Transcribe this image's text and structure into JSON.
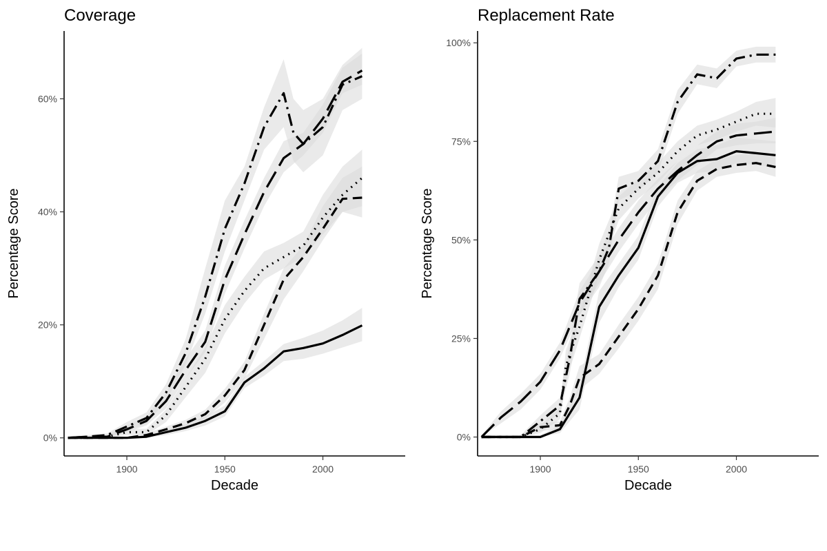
{
  "chart_data": [
    {
      "type": "line",
      "title": "Coverage",
      "xlabel": "Decade",
      "ylabel": "Percentage Score",
      "xlim": [
        1868,
        2042
      ],
      "ylim": [
        -3.2,
        72
      ],
      "x_ticks": [
        1900,
        1950,
        2000
      ],
      "x_tick_labels": [
        "1900",
        "1950",
        "2000"
      ],
      "y_ticks": [
        0,
        20,
        40,
        60
      ],
      "y_tick_labels": [
        "0%",
        "20%",
        "40%",
        "60%"
      ],
      "grid": false,
      "legend": "none",
      "band_color": "#d9d9d9",
      "line_color": "#000000",
      "series": [
        {
          "dash": "solid",
          "x": [
            1870,
            1880,
            1890,
            1900,
            1910,
            1920,
            1930,
            1940,
            1950,
            1960,
            1970,
            1980,
            1990,
            2000,
            2010,
            2020
          ],
          "values": [
            0,
            0,
            0,
            0,
            0.2,
            1,
            1.8,
            3,
            4.7,
            9.8,
            12.3,
            15.3,
            15.9,
            16.7,
            18.2,
            19.9
          ],
          "lower": [
            0,
            0,
            0,
            0,
            0,
            0.5,
            1.2,
            2.2,
            3.8,
            8.8,
            11,
            13.6,
            14,
            14.9,
            16,
            17.1
          ],
          "upper": [
            0.2,
            0.2,
            0.2,
            0.2,
            0.5,
            1.5,
            2.4,
            3.8,
            5.7,
            10.8,
            13.6,
            16.6,
            17.7,
            19,
            20.8,
            23
          ]
        },
        {
          "dash": "dashed-short",
          "x": [
            1870,
            1880,
            1890,
            1900,
            1910,
            1920,
            1930,
            1940,
            1950,
            1960,
            1970,
            1980,
            1990,
            2000,
            2010,
            2020
          ],
          "values": [
            0,
            0,
            0,
            0,
            0.5,
            1.5,
            2.6,
            4.2,
            7.5,
            12,
            20,
            28,
            32,
            37,
            42.3,
            42.5
          ],
          "lower": [
            0,
            0,
            0,
            0,
            0.2,
            1,
            2,
            3.4,
            6.3,
            10.5,
            17.5,
            24.5,
            29.5,
            35,
            40,
            39
          ],
          "upper": [
            0.2,
            0.2,
            0.2,
            0.2,
            0.8,
            2,
            3.2,
            5,
            8.7,
            13.5,
            22,
            30,
            34,
            41,
            46,
            48
          ]
        },
        {
          "dash": "dotted",
          "x": [
            1870,
            1880,
            1890,
            1900,
            1910,
            1920,
            1930,
            1940,
            1950,
            1960,
            1970,
            1980,
            1990,
            2000,
            2010,
            2020
          ],
          "values": [
            0,
            0,
            0.2,
            1,
            1,
            4,
            9,
            14,
            21,
            26,
            30,
            32,
            34,
            39,
            43,
            46
          ],
          "lower": [
            0,
            0,
            0,
            0.5,
            0.5,
            2.8,
            7.2,
            11.5,
            18.5,
            23.8,
            28,
            30,
            32,
            36,
            40,
            41
          ],
          "upper": [
            0.2,
            0.2,
            0.5,
            1.6,
            1.6,
            5,
            10.5,
            16,
            23.5,
            28.5,
            33,
            34.5,
            36.5,
            43,
            48,
            51
          ]
        },
        {
          "dash": "dashed-long",
          "x": [
            1870,
            1880,
            1890,
            1900,
            1910,
            1920,
            1930,
            1940,
            1950,
            1960,
            1970,
            1980,
            1990,
            2000,
            2010,
            2020
          ],
          "values": [
            0,
            0.2,
            0.2,
            1.5,
            3,
            6.5,
            12,
            17,
            28,
            36,
            43.5,
            49.5,
            52,
            56.5,
            63,
            65
          ],
          "lower": [
            0,
            0,
            0,
            1,
            2.2,
            5.2,
            10.5,
            15.2,
            25.5,
            33.5,
            41,
            47,
            50,
            54,
            61,
            62.5
          ],
          "upper": [
            0.2,
            0.4,
            0.5,
            2.2,
            3.8,
            8,
            14,
            19,
            30.5,
            38.5,
            46,
            52.5,
            54,
            59,
            65.5,
            68
          ]
        },
        {
          "dash": "dash-dot",
          "x": [
            1870,
            1880,
            1890,
            1900,
            1910,
            1920,
            1930,
            1940,
            1950,
            1960,
            1970,
            1980,
            1985,
            1990,
            2000,
            2010,
            2020
          ],
          "values": [
            0,
            0.2,
            0.5,
            2,
            3.5,
            8,
            15,
            25,
            37,
            45,
            55,
            61,
            54,
            52,
            55,
            62.5,
            64
          ],
          "lower": [
            0,
            0,
            0.2,
            1.2,
            2.5,
            6.5,
            13,
            22,
            33,
            42,
            51,
            55,
            49,
            47,
            50,
            58,
            60
          ],
          "upper": [
            0.3,
            0.5,
            0.8,
            2.8,
            4.5,
            9.5,
            17.5,
            30,
            42,
            48,
            58.5,
            67,
            60,
            58,
            60,
            66,
            69
          ]
        }
      ]
    },
    {
      "type": "line",
      "title": "Replacement Rate",
      "xlabel": "Decade",
      "ylabel": "Percentage Score",
      "xlim": [
        1868,
        2042
      ],
      "ylim": [
        -4.8,
        103
      ],
      "x_ticks": [
        1900,
        1950,
        2000
      ],
      "x_tick_labels": [
        "1900",
        "1950",
        "2000"
      ],
      "y_ticks": [
        0,
        25,
        50,
        75,
        100
      ],
      "y_tick_labels": [
        "0%",
        "25%",
        "50%",
        "75%",
        "100%"
      ],
      "grid": false,
      "legend": "none",
      "band_color": "#d9d9d9",
      "line_color": "#000000",
      "series": [
        {
          "dash": "solid",
          "x": [
            1870,
            1880,
            1890,
            1900,
            1910,
            1920,
            1930,
            1940,
            1950,
            1960,
            1970,
            1980,
            1990,
            2000,
            2010,
            2020
          ],
          "values": [
            0,
            0,
            0,
            0,
            2,
            10,
            33,
            41,
            48,
            61,
            67,
            70,
            70.5,
            72.5,
            72,
            71.5
          ],
          "lower": [
            0,
            0,
            0,
            0,
            1,
            7,
            29,
            38,
            45,
            58.5,
            64.5,
            67,
            67.5,
            69.5,
            69,
            68.5
          ],
          "upper": [
            0.5,
            0.5,
            0.5,
            0.5,
            3,
            13,
            37,
            44,
            51,
            63.5,
            69.5,
            73,
            74,
            76,
            75.5,
            75
          ]
        },
        {
          "dash": "dashed-short",
          "x": [
            1870,
            1880,
            1890,
            1900,
            1910,
            1915,
            1920,
            1930,
            1940,
            1950,
            1960,
            1970,
            1980,
            1990,
            2000,
            2010,
            2020
          ],
          "values": [
            0,
            0,
            0,
            2.5,
            3,
            8,
            15,
            18.5,
            25.5,
            32.5,
            41,
            57,
            65,
            68,
            69,
            69.5,
            68.5
          ],
          "lower": [
            0,
            0,
            0,
            1.5,
            2,
            6,
            12,
            16,
            22.5,
            29.5,
            37.5,
            54,
            62.5,
            66,
            67,
            67.5,
            66
          ],
          "upper": [
            0.5,
            0.5,
            0.5,
            3.5,
            4,
            10,
            18,
            21,
            28.5,
            35.5,
            44,
            60,
            67.5,
            70.5,
            71.5,
            72,
            71
          ]
        },
        {
          "dash": "dashed-long",
          "x": [
            1870,
            1880,
            1890,
            1900,
            1910,
            1920,
            1930,
            1940,
            1950,
            1960,
            1970,
            1980,
            1990,
            2000,
            2010,
            2020
          ],
          "values": [
            0,
            5,
            9,
            14,
            22,
            34,
            42,
            50,
            57,
            63,
            67.5,
            71.5,
            75,
            76.5,
            77,
            77.5
          ],
          "lower": [
            0,
            3.5,
            7,
            12,
            20,
            31,
            39,
            47,
            54,
            60.5,
            65,
            69,
            73,
            74,
            74.5,
            74.5
          ],
          "upper": [
            0.5,
            6.5,
            11,
            16,
            24,
            37,
            45,
            53,
            60,
            65.5,
            70,
            74,
            77.5,
            79.5,
            80,
            81
          ]
        },
        {
          "dash": "dotted",
          "x": [
            1870,
            1880,
            1890,
            1900,
            1910,
            1913,
            1920,
            1930,
            1940,
            1950,
            1960,
            1970,
            1980,
            1990,
            2000,
            2010,
            2020
          ],
          "values": [
            0,
            0,
            0,
            2,
            6,
            18,
            28,
            45,
            58,
            63,
            67,
            72.5,
            76.5,
            78,
            80,
            82,
            82
          ],
          "lower": [
            0,
            0,
            0,
            1,
            4.5,
            14,
            25,
            41,
            55,
            60.5,
            64.5,
            70,
            74,
            75.5,
            77.5,
            79,
            78.5
          ],
          "upper": [
            0.5,
            0.5,
            0.5,
            3,
            7.5,
            22,
            31,
            49,
            61,
            65.5,
            69.5,
            75,
            79,
            80.5,
            82.5,
            85,
            86
          ]
        },
        {
          "dash": "dash-dot",
          "x": [
            1870,
            1880,
            1890,
            1900,
            1910,
            1915,
            1920,
            1930,
            1935,
            1940,
            1950,
            1960,
            1970,
            1980,
            1990,
            2000,
            2010,
            2020
          ],
          "values": [
            0,
            0,
            0,
            4,
            8,
            20,
            35,
            42,
            48,
            63,
            65,
            70,
            85,
            92,
            91,
            96,
            97,
            97
          ],
          "lower": [
            0,
            0,
            0,
            2.5,
            6,
            16,
            31,
            38,
            44,
            60,
            62.5,
            67,
            82,
            89.5,
            88.5,
            94,
            95,
            95
          ],
          "upper": [
            0.5,
            0.5,
            0.5,
            5.5,
            10,
            24,
            39,
            46,
            52,
            66,
            67.5,
            73,
            88,
            94.5,
            93.5,
            98,
            99,
            99
          ]
        }
      ]
    }
  ]
}
